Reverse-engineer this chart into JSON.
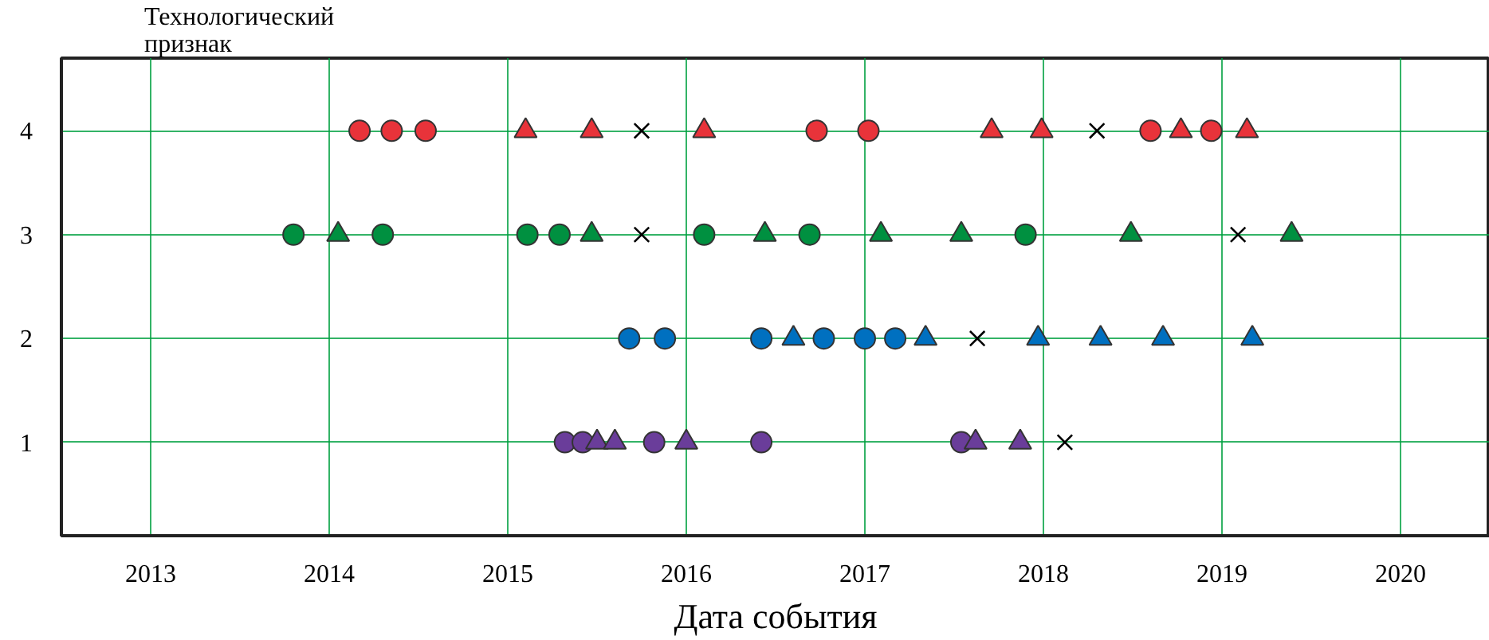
{
  "chart_data": {
    "type": "scatter",
    "xlabel": "Дата события",
    "ylabel": "Технологический признак",
    "xlim": [
      2012.5,
      2020.5
    ],
    "ylim": [
      0.1,
      4.7
    ],
    "xticks": [
      2013,
      2014,
      2015,
      2016,
      2017,
      2018,
      2019,
      2020
    ],
    "yticks": [
      1,
      2,
      3,
      4
    ],
    "grid": true,
    "series": [
      {
        "color": "#e8333a",
        "marker": "circle",
        "x": [
          2014.17,
          2014.35,
          2014.54,
          2016.73,
          2017.02,
          2018.6,
          2018.94
        ],
        "values": [
          4,
          4,
          4,
          4,
          4,
          4,
          4
        ]
      },
      {
        "color": "#e8333a",
        "marker": "triangle",
        "x": [
          2015.1,
          2015.47,
          2016.1,
          2017.71,
          2017.99,
          2018.77,
          2019.14
        ],
        "values": [
          4,
          4,
          4,
          4,
          4,
          4,
          4
        ]
      },
      {
        "color": "#009040",
        "marker": "circle",
        "x": [
          2013.8,
          2014.3,
          2015.11,
          2015.29,
          2016.1,
          2016.69,
          2017.9
        ],
        "values": [
          3,
          3,
          3,
          3,
          3,
          3,
          3
        ]
      },
      {
        "color": "#009040",
        "marker": "triangle",
        "x": [
          2014.05,
          2015.47,
          2016.44,
          2017.09,
          2017.54,
          2018.49,
          2019.39
        ],
        "values": [
          3,
          3,
          3,
          3,
          3,
          3,
          3
        ]
      },
      {
        "color": "#0070c0",
        "marker": "circle",
        "x": [
          2015.68,
          2015.88,
          2016.42,
          2016.77,
          2017.0,
          2017.17
        ],
        "values": [
          2,
          2,
          2,
          2,
          2,
          2
        ]
      },
      {
        "color": "#0070c0",
        "marker": "triangle",
        "x": [
          2016.6,
          2017.34,
          2017.97,
          2018.32,
          2018.67,
          2019.17
        ],
        "values": [
          2,
          2,
          2,
          2,
          2,
          2
        ]
      },
      {
        "color": "#6a3d9a",
        "marker": "circle",
        "x": [
          2015.32,
          2015.42,
          2015.82,
          2016.42,
          2017.54
        ],
        "values": [
          1,
          1,
          1,
          1,
          1
        ]
      },
      {
        "color": "#6a3d9a",
        "marker": "triangle",
        "x": [
          2015.5,
          2015.6,
          2016.0,
          2017.62,
          2017.87
        ],
        "values": [
          1,
          1,
          1,
          1,
          1
        ]
      },
      {
        "color": "#000000",
        "marker": "cross",
        "x": [
          2015.75,
          2018.3,
          2015.75,
          2019.09,
          2017.63,
          2018.12
        ],
        "values": [
          4,
          4,
          3,
          3,
          2,
          1
        ]
      }
    ]
  }
}
